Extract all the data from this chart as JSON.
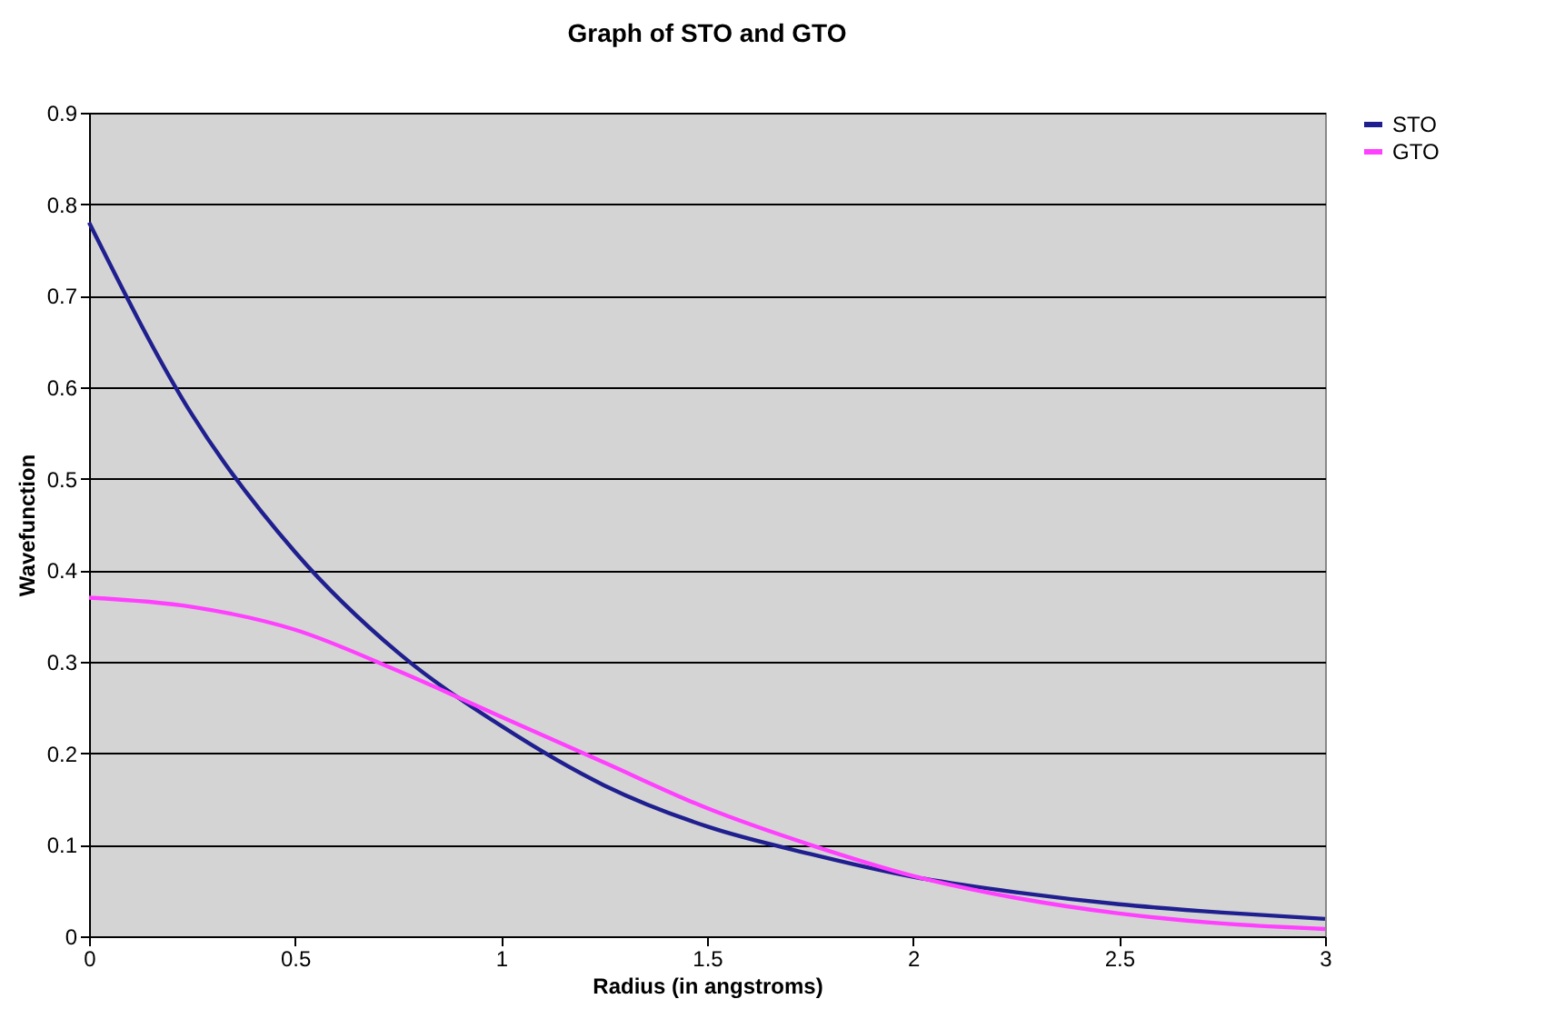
{
  "chart_data": {
    "type": "line",
    "title": "Graph of STO and GTO",
    "xlabel": "Radius (in angstroms)",
    "ylabel": "Wavefunction",
    "x": [
      0,
      0.25,
      0.5,
      0.75,
      1,
      1.25,
      1.5,
      1.75,
      2,
      2.25,
      2.5,
      2.75,
      3
    ],
    "series": [
      {
        "name": "STO",
        "color": "#1f1f8f",
        "values": [
          0.78,
          0.57,
          0.42,
          0.31,
          0.23,
          0.165,
          0.12,
          0.09,
          0.065,
          0.048,
          0.035,
          0.026,
          0.019
        ]
      },
      {
        "name": "GTO",
        "color": "#ff40ff",
        "values": [
          0.37,
          0.36,
          0.335,
          0.29,
          0.24,
          0.19,
          0.14,
          0.1,
          0.066,
          0.042,
          0.025,
          0.014,
          0.008
        ]
      }
    ],
    "xlim": [
      0,
      3
    ],
    "xticks": [
      0,
      0.5,
      1,
      1.5,
      2,
      2.5,
      3
    ],
    "ylim": [
      0,
      0.9
    ],
    "yticks": [
      0,
      0.1,
      0.2,
      0.3,
      0.4,
      0.5,
      0.6,
      0.7,
      0.8,
      0.9
    ],
    "grid": "y",
    "legend": "right",
    "marker": "none",
    "line_style": "solid"
  }
}
